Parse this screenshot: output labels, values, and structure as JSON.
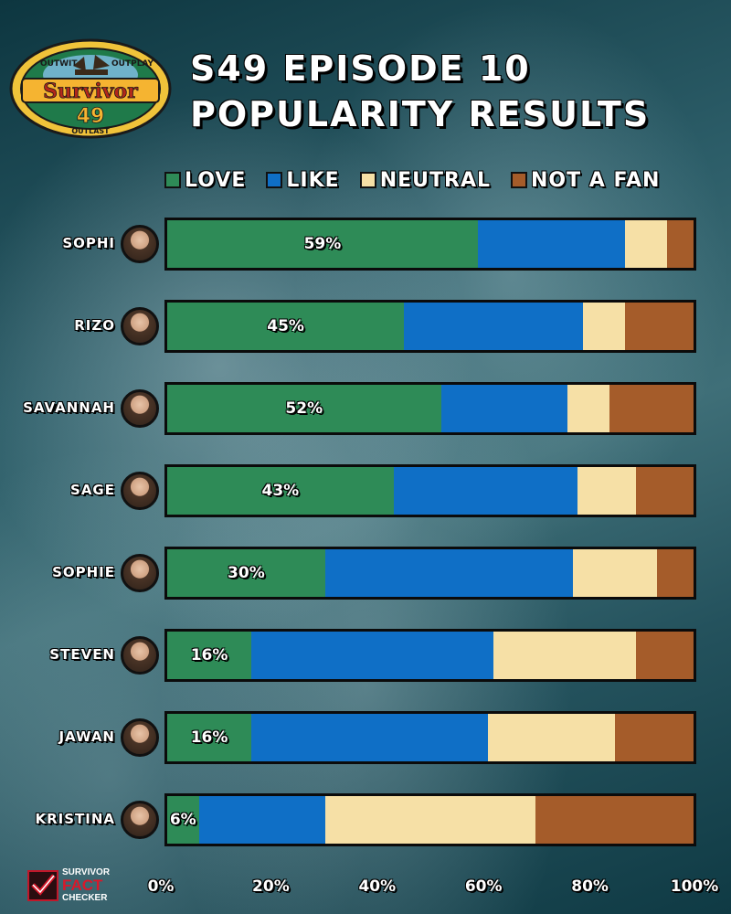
{
  "logo": {
    "top_text_left": "OUTWIT",
    "top_text_right": "OUTPLAY",
    "name": "Survivor",
    "season": "49",
    "bottom_text": "OUTLAST"
  },
  "title": {
    "line1": "S49 EPISODE 10",
    "line2": "POPULARITY RESULTS"
  },
  "colors": {
    "love": "#2e8b57",
    "like": "#0f6fc6",
    "neutral": "#f6e0a6",
    "not_a_fan": "#a55c2a"
  },
  "chart_data": {
    "type": "bar",
    "orientation": "horizontal-stacked-100",
    "categories": [
      "SOPHI",
      "RIZO",
      "SAVANNAH",
      "SAGE",
      "SOPHIE",
      "STEVEN",
      "JAWAN",
      "KRISTINA"
    ],
    "series": [
      {
        "name": "LOVE",
        "color": "#2e8b57",
        "values": [
          59,
          45,
          52,
          43,
          30,
          16,
          16,
          6
        ]
      },
      {
        "name": "LIKE",
        "color": "#0f6fc6",
        "values": [
          28,
          34,
          24,
          35,
          47,
          46,
          45,
          24
        ]
      },
      {
        "name": "NEUTRAL",
        "color": "#f6e0a6",
        "values": [
          8,
          8,
          8,
          11,
          16,
          27,
          24,
          40
        ]
      },
      {
        "name": "NOT A FAN",
        "color": "#a55c2a",
        "values": [
          5,
          13,
          16,
          11,
          7,
          11,
          15,
          30
        ]
      }
    ],
    "data_labels": {
      "series": "LOVE",
      "labels": [
        "59%",
        "45%",
        "52%",
        "43%",
        "30%",
        "16%",
        "16%",
        "6%"
      ]
    },
    "x_ticks": [
      "0%",
      "20%",
      "40%",
      "60%",
      "80%",
      "100%"
    ],
    "xlim": [
      0,
      100
    ],
    "legend_position": "top"
  },
  "watermark": {
    "line1": "SURVIVOR",
    "line2": "FACT",
    "line3": "CHECKER"
  }
}
